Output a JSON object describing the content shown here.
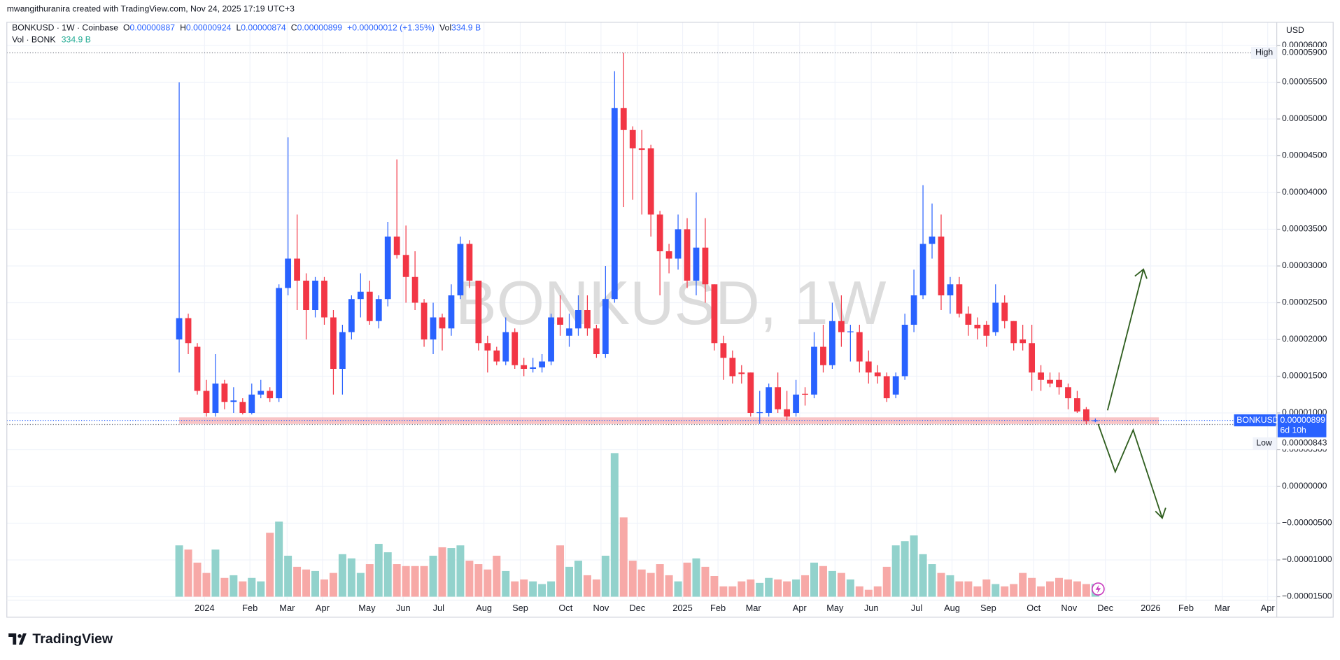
{
  "chart_data": {
    "type": "candlestick",
    "attribution": "mwangithuranira created with TradingView.com, Nov 24, 2025 17:19 UTC+3",
    "legend": {
      "symbol": "BONKUSD · 1W · Coinbase",
      "o_key": "O",
      "o": "0.00000887",
      "h_key": "H",
      "h": "0.00000924",
      "l_key": "L",
      "l": "0.00000874",
      "c_key": "C",
      "c": "0.00000899",
      "change": "+0.00000012 (+1.35%)",
      "vol_key": "Vol",
      "vol": "334.9 B"
    },
    "volume_legend": {
      "name": "Vol · BONK",
      "value": "334.9 B"
    },
    "watermark": "BONKUSD, 1W",
    "currency": "USD",
    "brand": "TradingView",
    "up_color": "#2962ff",
    "down_color": "#f23645",
    "volume_up_color": "#92d2cc",
    "volume_down_color": "#f7a9a7",
    "open": [
      2e-05,
      2.29e-05,
      1.9e-05,
      1.3e-05,
      1e-05,
      1.4e-05,
      1.15e-05,
      1.15e-05,
      1e-05,
      1.25e-05,
      1.3e-05,
      1.2e-05,
      2.7e-05,
      3.1e-05,
      2.8e-05,
      2.4e-05,
      2.8e-05,
      2.3e-05,
      1.6e-05,
      2.1e-05,
      2.55e-05,
      2.65e-05,
      2.25e-05,
      2.55e-05,
      3.4e-05,
      3.15e-05,
      2.85e-05,
      2.5e-05,
      2e-05,
      2.3e-05,
      2.15e-05,
      2.6e-05,
      3.3e-05,
      2.8e-05,
      1.95e-05,
      1.85e-05,
      1.7e-05,
      2.1e-05,
      1.65e-05,
      1.6e-05,
      1.62e-05,
      1.7e-05,
      2.3e-05,
      2.05e-05,
      2.15e-05,
      2.4e-05,
      2.15e-05,
      1.8e-05,
      2.55e-05,
      5.15e-05,
      4.85e-05,
      4.6e-05,
      4.6e-05,
      3.7e-05,
      3.2e-05,
      3.1e-05,
      3.5e-05,
      2.8e-05,
      3.25e-05,
      2.75e-05,
      1.95e-05,
      1.75e-05,
      1.55e-05,
      1.55e-05,
      1e-05,
      1e-05,
      1.35e-05,
      1.05e-05,
      1e-05,
      1.26e-05,
      1.25e-05,
      1.9e-05,
      1.65e-05,
      2.25e-05,
      2.1e-05,
      2.1e-05,
      1.7e-05,
      1.55e-05,
      1.5e-05,
      1.25e-05,
      1.5e-05,
      2.2e-05,
      2.6e-05,
      3.3e-05,
      3.4e-05,
      2.6e-05,
      2.75e-05,
      2.35e-05,
      2.2e-05,
      2.2e-05,
      2.1e-05,
      2.5e-05,
      2.25e-05,
      2e-05,
      1.95e-05,
      1.55e-05,
      1.45e-05,
      1.45e-05,
      1.35e-05,
      1.2e-05,
      1.05e-05,
      8.87e-06
    ],
    "high": [
      5.5e-05,
      2.35e-05,
      1.95e-05,
      1.45e-05,
      1.8e-05,
      1.45e-05,
      1.35e-05,
      1.2e-05,
      1.4e-05,
      1.45e-05,
      1.35e-05,
      2.75e-05,
      4.75e-05,
      3.7e-05,
      2.9e-05,
      2.85e-05,
      2.85e-05,
      2.4e-05,
      2.2e-05,
      2.6e-05,
      2.9e-05,
      2.8e-05,
      2.6e-05,
      3.6e-05,
      4.45e-05,
      3.55e-05,
      3.2e-05,
      2.55e-05,
      2.5e-05,
      2.35e-05,
      2.75e-05,
      3.4e-05,
      3.35e-05,
      2.8e-05,
      2.05e-05,
      1.9e-05,
      2.3e-05,
      2.15e-05,
      1.75e-05,
      1.75e-05,
      1.8e-05,
      2.35e-05,
      2.6e-05,
      2.35e-05,
      2.6e-05,
      2.6e-05,
      2.2e-05,
      3e-05,
      5.65e-05,
      5.9e-05,
      4.9e-05,
      4.85e-05,
      4.65e-05,
      3.75e-05,
      3.3e-05,
      3.7e-05,
      3.65e-05,
      4e-05,
      3.65e-05,
      2.75e-05,
      2.05e-05,
      1.85e-05,
      1.65e-05,
      1.55e-05,
      1.3e-05,
      1.4e-05,
      1.55e-05,
      1.3e-05,
      1.45e-05,
      1.35e-05,
      2.1e-05,
      2.2e-05,
      2.5e-05,
      2.6e-05,
      2.2e-05,
      2.2e-05,
      1.85e-05,
      1.65e-05,
      1.55e-05,
      1.55e-05,
      2.35e-05,
      2.95e-05,
      4.1e-05,
      3.85e-05,
      3.7e-05,
      2.85e-05,
      2.85e-05,
      2.45e-05,
      2.3e-05,
      2.25e-05,
      2.75e-05,
      2.6e-05,
      2.25e-05,
      2.2e-05,
      2.2e-05,
      1.65e-05,
      1.55e-05,
      1.55e-05,
      1.4e-05,
      1.3e-05,
      1.08e-05,
      9.24e-06
    ],
    "low": [
      1.55e-05,
      1.8e-05,
      1.25e-05,
      9.5e-06,
      9.5e-06,
      1.05e-05,
      1e-05,
      9.8e-06,
      9.8e-06,
      1.2e-05,
      1.15e-05,
      1.15e-05,
      2.6e-05,
      2.4e-05,
      2e-05,
      2.3e-05,
      2.2e-05,
      1.25e-05,
      1.25e-05,
      2e-05,
      2.3e-05,
      2.2e-05,
      2.15e-05,
      2.45e-05,
      3.1e-05,
      2.5e-05,
      2.4e-05,
      1.9e-05,
      1.8e-05,
      1.85e-05,
      2.05e-05,
      2.55e-05,
      2.7e-05,
      1.85e-05,
      1.55e-05,
      1.65e-05,
      1.65e-05,
      1.6e-05,
      1.5e-05,
      1.55e-05,
      1.55e-05,
      1.65e-05,
      2.05e-05,
      1.9e-05,
      2.05e-05,
      2.05e-05,
      1.75e-05,
      1.75e-05,
      2.5e-05,
      3.8e-05,
      3.9e-05,
      3.7e-05,
      3.4e-05,
      2.6e-05,
      2.9e-05,
      2.95e-05,
      2.7e-05,
      2.6e-05,
      2.5e-05,
      1.85e-05,
      1.45e-05,
      1.4e-05,
      1.4e-05,
      9.5e-06,
      8.5e-06,
      9.5e-06,
      1e-05,
      9e-06,
      9.5e-06,
      1.1e-05,
      1.2e-05,
      1.55e-05,
      1.6e-05,
      1.9e-05,
      1.7e-05,
      1.55e-05,
      1.4e-05,
      1.4e-05,
      1.15e-05,
      1.2e-05,
      1.45e-05,
      2.1e-05,
      2.55e-05,
      3.1e-05,
      2.4e-05,
      2.35e-05,
      2.3e-05,
      2.05e-05,
      2e-05,
      1.9e-05,
      2.05e-05,
      2.15e-05,
      1.85e-05,
      1.85e-05,
      1.3e-05,
      1.3e-05,
      1.35e-05,
      1.25e-05,
      1.05e-05,
      1e-05,
      8.43e-06,
      8.74e-06
    ],
    "close": [
      2.29e-05,
      1.95e-05,
      1.3e-05,
      1e-05,
      1.4e-05,
      1.15e-05,
      1.17e-05,
      1e-05,
      1.25e-05,
      1.3e-05,
      1.2e-05,
      2.7e-05,
      3.1e-05,
      2.8e-05,
      2.4e-05,
      2.8e-05,
      2.3e-05,
      1.6e-05,
      2.1e-05,
      2.55e-05,
      2.65e-05,
      2.25e-05,
      2.55e-05,
      3.4e-05,
      3.15e-05,
      2.85e-05,
      2.5e-05,
      2e-05,
      2.3e-05,
      2.15e-05,
      2.6e-05,
      3.3e-05,
      2.8e-05,
      1.95e-05,
      1.85e-05,
      1.7e-05,
      2.1e-05,
      1.65e-05,
      1.6e-05,
      1.62e-05,
      1.7e-05,
      2.3e-05,
      2.2e-05,
      2.15e-05,
      2.4e-05,
      2.15e-05,
      1.8e-05,
      2.55e-05,
      5.15e-05,
      4.85e-05,
      4.6e-05,
      4.58e-05,
      3.7e-05,
      3.2e-05,
      3.1e-05,
      3.5e-05,
      2.8e-05,
      3.25e-05,
      2.75e-05,
      1.95e-05,
      1.75e-05,
      1.5e-05,
      1.53e-05,
      1e-05,
      1.01e-05,
      1.35e-05,
      1.05e-05,
      9.5e-06,
      1.25e-05,
      1.25e-05,
      1.9e-05,
      1.65e-05,
      2.25e-05,
      2.1e-05,
      2.11e-05,
      1.7e-05,
      1.55e-05,
      1.5e-05,
      1.2e-05,
      1.5e-05,
      2.2e-05,
      2.6e-05,
      3.3e-05,
      3.4e-05,
      2.6e-05,
      2.75e-05,
      2.35e-05,
      2.2e-05,
      2.15e-05,
      2.05e-05,
      2.5e-05,
      2.25e-05,
      1.95e-05,
      1.95e-05,
      1.55e-05,
      1.45e-05,
      1.4e-05,
      1.35e-05,
      1.2e-05,
      1.02e-05,
      8.87e-06,
      8.99e-06
    ],
    "volume": [
      1340,
      1230,
      890,
      620,
      1230,
      490,
      560,
      400,
      490,
      400,
      1670,
      1960,
      1070,
      780,
      710,
      670,
      450,
      620,
      1110,
      1000,
      620,
      850,
      1380,
      1160,
      850,
      800,
      800,
      800,
      1070,
      1290,
      1270,
      1340,
      940,
      850,
      710,
      1070,
      670,
      400,
      450,
      400,
      330,
      400,
      1340,
      780,
      940,
      560,
      450,
      1070,
      3750,
      2070,
      940,
      710,
      620,
      850,
      560,
      400,
      890,
      1000,
      780,
      540,
      270,
      270,
      400,
      450,
      360,
      490,
      450,
      400,
      450,
      560,
      890,
      800,
      670,
      620,
      450,
      270,
      180,
      270,
      780,
      1340,
      1450,
      1600,
      1110,
      850,
      620,
      560,
      400,
      400,
      270,
      450,
      330,
      270,
      330,
      620,
      490,
      270,
      400,
      490,
      450,
      400,
      330,
      334.9
    ],
    "xlim": [
      -19,
      121
    ],
    "xticks": [
      {
        "value": 2.8,
        "label": "2024"
      },
      {
        "value": 7.8,
        "label": "Feb"
      },
      {
        "value": 11.9,
        "label": "Mar"
      },
      {
        "value": 15.8,
        "label": "Apr"
      },
      {
        "value": 20.7,
        "label": "May"
      },
      {
        "value": 24.7,
        "label": "Jun"
      },
      {
        "value": 28.6,
        "label": "Jul"
      },
      {
        "value": 33.6,
        "label": "Aug"
      },
      {
        "value": 37.6,
        "label": "Sep"
      },
      {
        "value": 42.6,
        "label": "Oct"
      },
      {
        "value": 46.5,
        "label": "Nov"
      },
      {
        "value": 50.5,
        "label": "Dec"
      },
      {
        "value": 55.5,
        "label": "2025"
      },
      {
        "value": 59.4,
        "label": "Feb"
      },
      {
        "value": 63.3,
        "label": "Mar"
      },
      {
        "value": 68.4,
        "label": "Apr"
      },
      {
        "value": 72.3,
        "label": "May"
      },
      {
        "value": 76.3,
        "label": "Jun"
      },
      {
        "value": 81.3,
        "label": "Jul"
      },
      {
        "value": 85.2,
        "label": "Aug"
      },
      {
        "value": 89.2,
        "label": "Sep"
      },
      {
        "value": 94.2,
        "label": "Oct"
      },
      {
        "value": 98.1,
        "label": "Nov"
      },
      {
        "value": 102.1,
        "label": "Dec"
      },
      {
        "value": 107.1,
        "label": "2026"
      },
      {
        "value": 111.0,
        "label": "Feb"
      },
      {
        "value": 115.0,
        "label": "Mar"
      },
      {
        "value": 120.0,
        "label": "Apr"
      }
    ],
    "ylim": [
      -1.547e-05,
      6.316e-05
    ],
    "yticks": [
      {
        "value": -1.5e-05,
        "label": "−0.00001500"
      },
      {
        "value": -1e-05,
        "label": "−0.00001000"
      },
      {
        "value": -5e-06,
        "label": "−0.00000500"
      },
      {
        "value": 0,
        "label": "0.00000000"
      },
      {
        "value": 5e-06,
        "label": "0.00000500"
      },
      {
        "value": 1e-05,
        "label": "0.00001000"
      },
      {
        "value": 1.5e-05,
        "label": "0.00001500"
      },
      {
        "value": 2e-05,
        "label": "0.00002000"
      },
      {
        "value": 2.5e-05,
        "label": "0.00002500"
      },
      {
        "value": 3e-05,
        "label": "0.00003000"
      },
      {
        "value": 3.5e-05,
        "label": "0.00003500"
      },
      {
        "value": 4e-05,
        "label": "0.00004000"
      },
      {
        "value": 4.5e-05,
        "label": "0.00004500"
      },
      {
        "value": 5e-05,
        "label": "0.00005000"
      },
      {
        "value": 5.5e-05,
        "label": "0.00005500"
      },
      {
        "value": 6e-05,
        "label": "0.00006000"
      }
    ],
    "grid": true,
    "zone": {
      "low": 8.5e-06,
      "high": 9.4e-06,
      "start": 0,
      "end": 108,
      "color": "#f7b5b8"
    },
    "high_marker": {
      "label": "High",
      "value": 5.9e-05,
      "value_label": "0.00005900"
    },
    "low_marker": {
      "label": "Low",
      "value": 8.43e-06,
      "value_label": "0.00000843"
    },
    "last_price": {
      "symbol": "BONKUSD",
      "value_label": "0.00000899",
      "countdown": "6d 10h"
    }
  }
}
